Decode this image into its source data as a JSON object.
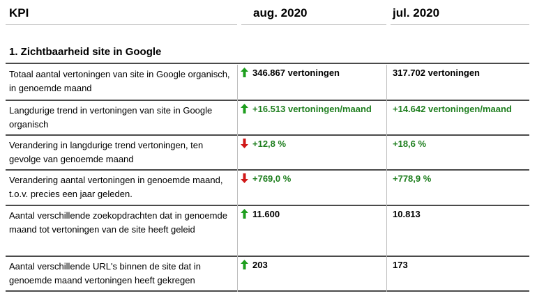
{
  "header": {
    "kpi": "KPI",
    "col1": "aug. 2020",
    "col2": "jul. 2020"
  },
  "section": {
    "title": "1. Zichtbaarheid site in Google"
  },
  "colors": {
    "up_arrow": "#1e9e1e",
    "down_arrow": "#d01818",
    "green_text": "#1e7e1e"
  },
  "rows": [
    {
      "label": "Totaal aantal vertoningen van site in Google organisch, in genoemde maand",
      "v1": "346.867 vertoningen",
      "v1_arrow": "arrow-up-icon",
      "v1_color": "black",
      "v2": "317.702 vertoningen",
      "v2_color": "black"
    },
    {
      "label": "Langdurige trend in vertoningen van site in Google organisch",
      "v1": "+16.513 vertoningen/maand",
      "v1_arrow": "arrow-up-icon",
      "v1_color": "green",
      "v2": "+14.642 vertoningen/maand",
      "v2_color": "green"
    },
    {
      "label": "Verandering in langdurige trend vertoningen, ten gevolge van genoemde maand",
      "v1": "+12,8 %",
      "v1_arrow": "arrow-down-icon",
      "v1_color": "green",
      "v2": "+18,6 %",
      "v2_color": "green"
    },
    {
      "label": "Verandering aantal vertoningen in genoemde maand, t.o.v. precies een jaar geleden.",
      "v1": "+769,0 %",
      "v1_arrow": "arrow-down-icon",
      "v1_color": "green",
      "v2": "+778,9 %",
      "v2_color": "green"
    },
    {
      "label": "Aantal verschillende zoekopdrachten dat in genoemde maand tot vertoningen van de site heeft geleid",
      "v1": "11.600",
      "v1_arrow": "arrow-up-icon",
      "v1_color": "black",
      "v2": "10.813",
      "v2_color": "black"
    },
    {
      "label": "Aantal verschillende URL's binnen de site dat in genoemde maand vertoningen heeft gekregen",
      "v1": "203",
      "v1_arrow": "arrow-up-icon",
      "v1_color": "black",
      "v2": "173",
      "v2_color": "black"
    }
  ]
}
